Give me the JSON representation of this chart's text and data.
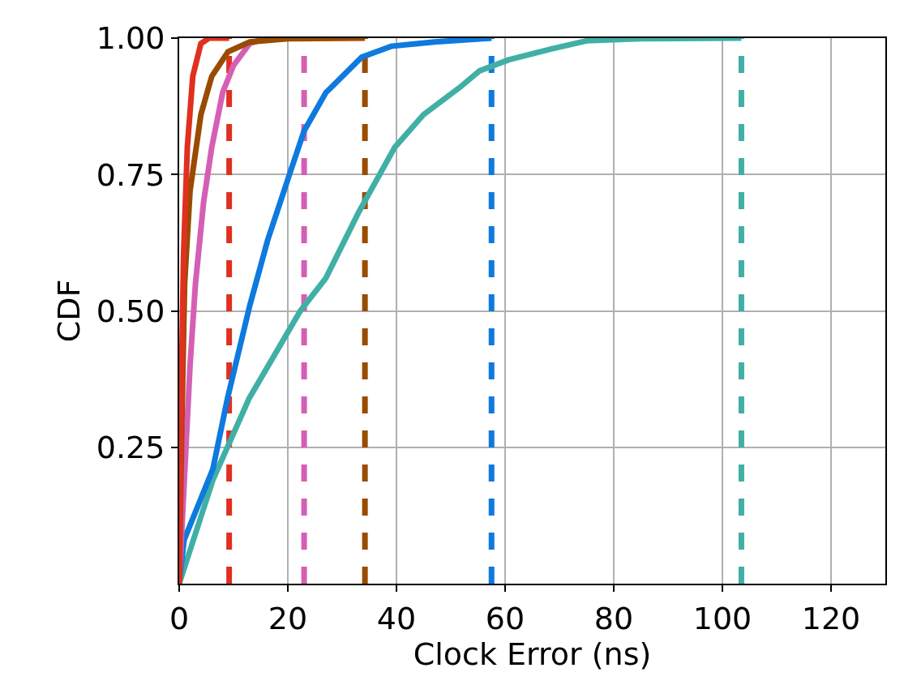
{
  "chart_data": {
    "type": "line",
    "xlabel": "Clock Error (ns)",
    "ylabel": "CDF",
    "xlim": [
      0,
      130
    ],
    "xticks": [
      0,
      20,
      40,
      60,
      80,
      100,
      120
    ],
    "ylim": [
      0,
      1
    ],
    "yticks": [
      0.25,
      {
        "value": 0.5,
        "label": "0.50"
      },
      0.75,
      {
        "value": 1.0,
        "label": "1.00"
      }
    ],
    "grid": true,
    "marker": "none",
    "line_style": "solid",
    "series": [
      {
        "color": "#40b0a6",
        "x": [
          0,
          6.2,
          12.9,
          22.3,
          27,
          33,
          39.7,
          45,
          51.7,
          55.3,
          60.6,
          68.5,
          75,
          85,
          103.5
        ],
        "values": [
          0,
          0.19,
          0.34,
          0.5,
          0.56,
          0.68,
          0.8,
          0.86,
          0.91,
          0.94,
          0.96,
          0.98,
          0.995,
          0.999,
          1.0
        ]
      },
      {
        "color": "#0e7ade",
        "x": [
          0,
          0.9,
          6.2,
          8.9,
          13,
          16.3,
          20.3,
          23,
          27,
          33.6,
          39,
          47,
          57.5
        ],
        "values": [
          0,
          0.08,
          0.21,
          0.34,
          0.51,
          0.63,
          0.75,
          0.83,
          0.9,
          0.965,
          0.985,
          0.993,
          1.0
        ]
      },
      {
        "color": "#d55fb5",
        "x": [
          0,
          1,
          2,
          3,
          4.5,
          6,
          8,
          10,
          13,
          16
        ],
        "values": [
          0,
          0.2,
          0.4,
          0.55,
          0.7,
          0.8,
          0.9,
          0.95,
          0.99,
          1.0
        ]
      },
      {
        "color": "#994c00",
        "x": [
          0,
          0.5,
          1,
          2,
          4,
          6,
          9,
          13,
          20,
          34.2
        ],
        "values": [
          0,
          0.3,
          0.55,
          0.72,
          0.86,
          0.93,
          0.975,
          0.993,
          0.999,
          1.0
        ]
      },
      {
        "color": "#e03020",
        "x": [
          0,
          0.3,
          0.8,
          1.5,
          2.5,
          4,
          5.5,
          9.2
        ],
        "values": [
          0,
          0.3,
          0.6,
          0.8,
          0.93,
          0.99,
          1.0,
          1.0
        ]
      }
    ],
    "ref_lines": [
      {
        "axis": "x",
        "value": 9.2,
        "color": "#e03020",
        "line_style": "dashed"
      },
      {
        "axis": "x",
        "value": 23,
        "color": "#d55fb5",
        "line_style": "dashed"
      },
      {
        "axis": "x",
        "value": 34.2,
        "color": "#994c00",
        "line_style": "dashed"
      },
      {
        "axis": "x",
        "value": 57.5,
        "color": "#0e7ade",
        "line_style": "dashed"
      },
      {
        "axis": "x",
        "value": 103.5,
        "color": "#40b0a6",
        "line_style": "dashed"
      }
    ]
  }
}
